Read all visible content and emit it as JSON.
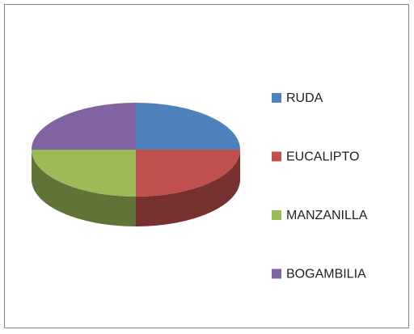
{
  "chart_data": {
    "type": "pie3d",
    "categories": [
      "RUDA",
      "EUCALIPTO",
      "MANZANILLA",
      "BOGAMBILIA"
    ],
    "values": [
      25,
      25,
      25,
      25
    ],
    "colors": [
      "#4f81bd",
      "#c0504d",
      "#9bbb59",
      "#8064a2"
    ],
    "legend": "right"
  }
}
